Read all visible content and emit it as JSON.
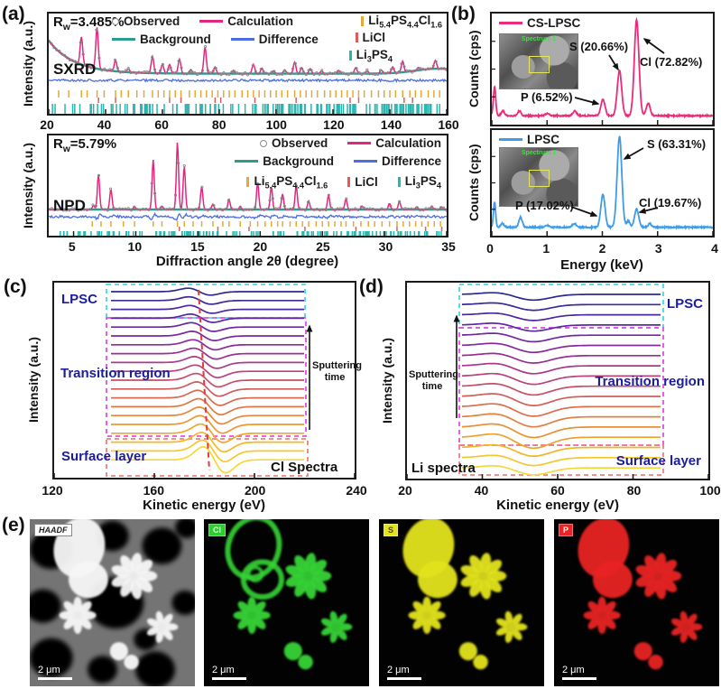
{
  "panel_labels": {
    "a": "(a)",
    "b": "(b)",
    "c": "(c)",
    "d": "(d)",
    "e": "(e)"
  },
  "chart_data": [
    {
      "id": "sxrd",
      "type": "line",
      "title": "SXRD",
      "rw": [
        {
          "t": "R"
        },
        {
          "s": "w"
        },
        {
          "t": "=3.485%"
        }
      ],
      "xlabel": "Diffraction angle 2θ (degree)",
      "ylabel": "Intensity (a.u.)",
      "xlim": [
        20,
        160
      ],
      "xticks": [
        20,
        40,
        60,
        80,
        100,
        120,
        140,
        160
      ],
      "series": [
        {
          "name": "Observed",
          "color": "#8a8a8a"
        },
        {
          "name": "Calculation",
          "color": "#e4267f"
        },
        {
          "name": "Background",
          "color": "#2a9d8f"
        },
        {
          "name": "Difference",
          "color": "#4a6de0"
        }
      ],
      "peaks": [
        [
          31.5,
          0.5
        ],
        [
          37,
          0.75
        ],
        [
          43.5,
          0.2
        ],
        [
          48,
          0.06
        ],
        [
          56.5,
          0.3
        ],
        [
          60,
          0.16
        ],
        [
          62.5,
          0.16
        ],
        [
          66,
          0.26
        ],
        [
          70,
          0.07
        ],
        [
          75,
          0.48
        ],
        [
          78.5,
          0.12
        ],
        [
          85,
          0.06
        ],
        [
          92,
          0.17
        ],
        [
          95,
          0.1
        ],
        [
          99,
          0.05
        ],
        [
          103,
          0.07
        ],
        [
          106.5,
          0.21
        ],
        [
          109,
          0.11
        ],
        [
          112,
          0.09
        ],
        [
          116,
          0.05
        ],
        [
          122,
          0.06
        ],
        [
          128,
          0.11
        ],
        [
          132,
          0.05
        ],
        [
          137,
          0.06
        ],
        [
          141,
          0.11
        ],
        [
          144.5,
          0.2
        ],
        [
          150,
          0.05
        ],
        [
          156,
          0.15
        ]
      ],
      "phases": [
        {
          "name_tokens": [
            {
              "t": "Li"
            },
            {
              "s": "5.4"
            },
            {
              "t": "PS"
            },
            {
              "s": "4.4"
            },
            {
              "t": "Cl"
            },
            {
              "s": "1.6"
            }
          ],
          "color": "#e2aa3c",
          "ticks": [
            23.5,
            27,
            31.5,
            33.5,
            37,
            39.5,
            43.5,
            45.5,
            48,
            51,
            53.5,
            56.5,
            58.5,
            60.5,
            62.5,
            64.5,
            66.5,
            69.5,
            71.5,
            73.5,
            75.5,
            77.5,
            79.5,
            81.5,
            83.5,
            85.5,
            88,
            90,
            92,
            94,
            96,
            98,
            100,
            102,
            104,
            106.5,
            108.5,
            110.5,
            112.5,
            114.5,
            117,
            119,
            121,
            123,
            125,
            127,
            129,
            131,
            133.5,
            136,
            138,
            140,
            142,
            144.5,
            147,
            149,
            151,
            153.5,
            155.5,
            157.5
          ]
        },
        {
          "name_tokens": [
            {
              "t": "LiCl"
            }
          ],
          "color": "#e05c5c",
          "ticks": [
            37.5,
            43.5,
            62.5,
            66.5,
            78.5,
            80.5,
            92.5,
            107,
            126,
            129,
            145,
            148
          ]
        },
        {
          "name_tokens": [
            {
              "t": "Li"
            },
            {
              "s": "3"
            },
            {
              "t": "PS"
            },
            {
              "s": "4"
            }
          ],
          "color": "#2cb5ae",
          "ticks_random": {
            "count": 160,
            "seed": 9
          }
        }
      ]
    },
    {
      "id": "npd",
      "type": "line",
      "title": "NPD",
      "rw": [
        {
          "t": "R"
        },
        {
          "s": "w"
        },
        {
          "t": "=5.79%"
        }
      ],
      "xlabel": "Diffraction angle 2θ (degree)",
      "ylabel": "Intensity (a.u.)",
      "xlim": [
        3,
        35
      ],
      "xticks": [
        5,
        10,
        15,
        20,
        25,
        30,
        35
      ],
      "series": [
        {
          "name": "Observed",
          "color": "#8a8a8a"
        },
        {
          "name": "Calculation",
          "color": "#e4267f"
        },
        {
          "name": "Background",
          "color": "#2a9d8f"
        },
        {
          "name": "Difference",
          "color": "#4a6de0"
        }
      ],
      "peaks": [
        [
          6.6,
          0.06
        ],
        [
          7.0,
          0.52
        ],
        [
          8.0,
          0.3
        ],
        [
          9.9,
          0.04
        ],
        [
          11.4,
          0.74
        ],
        [
          12.1,
          0.05
        ],
        [
          13.35,
          1.0
        ],
        [
          13.9,
          0.64
        ],
        [
          15.3,
          0.34
        ],
        [
          16.2,
          0.08
        ],
        [
          17.5,
          0.15
        ],
        [
          18.4,
          0.04
        ],
        [
          19.8,
          0.4
        ],
        [
          20.9,
          0.34
        ],
        [
          21.8,
          0.23
        ],
        [
          22.9,
          0.36
        ],
        [
          23.9,
          0.13
        ],
        [
          25.5,
          0.21
        ],
        [
          26.9,
          0.16
        ],
        [
          28.2,
          0.05
        ],
        [
          30.4,
          0.09
        ],
        [
          31.2,
          0.12
        ],
        [
          32.6,
          0.04
        ],
        [
          33.8,
          0.05
        ],
        [
          34.6,
          0.04
        ]
      ],
      "phases": [
        {
          "name_tokens": [
            {
              "t": "Li"
            },
            {
              "s": "5.4"
            },
            {
              "t": "PS"
            },
            {
              "s": "4.4"
            },
            {
              "t": "Cl"
            },
            {
              "s": "1.6"
            }
          ],
          "color": "#e2aa3c",
          "ticks": [
            6.5,
            7.2,
            8.0,
            9.0,
            9.9,
            11.4,
            12.1,
            13.35,
            13.9,
            14.6,
            15.3,
            16.2,
            17.0,
            17.5,
            18.4,
            19.2,
            19.8,
            20.4,
            20.9,
            21.4,
            21.8,
            22.4,
            22.9,
            23.4,
            23.9,
            24.5,
            25.0,
            25.5,
            26.0,
            26.5,
            26.9,
            27.5,
            28.1,
            28.7,
            29.2,
            29.8,
            30.4,
            31.0,
            31.5,
            32.0,
            32.5,
            33.0,
            33.5,
            34.0,
            34.5
          ]
        },
        {
          "name_tokens": [
            {
              "t": "LiCl"
            }
          ],
          "color": "#e05c5c",
          "ticks": [
            13.5,
            16.6,
            19.1,
            23.6,
            27.7,
            31.0,
            33.3,
            34.6
          ]
        },
        {
          "name_tokens": [
            {
              "t": "Li"
            },
            {
              "s": "3"
            },
            {
              "t": "PS"
            },
            {
              "s": "4"
            }
          ],
          "color": "#2cb5ae",
          "ticks_random": {
            "count": 150,
            "seed": 5
          }
        }
      ]
    },
    {
      "id": "eds-cs-lpsc",
      "type": "line",
      "legend": "CS-LPSC",
      "color": "#ee2a7b",
      "xlabel": "Energy (keV)",
      "ylabel": "Counts (cps)",
      "xlim": [
        0,
        4
      ],
      "xticks": [
        0,
        1,
        2,
        3,
        4
      ],
      "peaks": [
        [
          0.05,
          0.3,
          0.022
        ],
        [
          0.2,
          0.05,
          0.03
        ],
        [
          0.5,
          0.05,
          0.03
        ],
        [
          1.0,
          0.02,
          0.04
        ],
        [
          1.5,
          0.05,
          0.035
        ],
        [
          2.01,
          0.17,
          0.038
        ],
        [
          2.31,
          0.47,
          0.04
        ],
        [
          2.62,
          1.0,
          0.042
        ],
        [
          2.83,
          0.13,
          0.035
        ]
      ],
      "annotations": [
        {
          "text": "P (6.52%)",
          "x": 2.01
        },
        {
          "text": "S (20.66%)",
          "x": 2.31
        },
        {
          "text": "Cl (72.82%)",
          "x": 2.62
        }
      ],
      "inset_label": "Spectrum 1"
    },
    {
      "id": "eds-lpsc",
      "type": "line",
      "legend": "LPSC",
      "color": "#3f9ce8",
      "xlabel": "Energy (keV)",
      "ylabel": "Counts (cps)",
      "xlim": [
        0,
        4
      ],
      "xticks": [
        0,
        1,
        2,
        3,
        4
      ],
      "peaks": [
        [
          0.05,
          0.28,
          0.02
        ],
        [
          0.19,
          0.04,
          0.03
        ],
        [
          0.52,
          0.11,
          0.03
        ],
        [
          1.0,
          0.02,
          0.04
        ],
        [
          1.49,
          0.04,
          0.035
        ],
        [
          2.01,
          0.36,
          0.038
        ],
        [
          2.31,
          1.0,
          0.042
        ],
        [
          2.47,
          0.07,
          0.03
        ],
        [
          2.62,
          0.2,
          0.038
        ],
        [
          2.86,
          0.04,
          0.03
        ]
      ],
      "annotations": [
        {
          "text": "P (17.02%)",
          "x": 2.01
        },
        {
          "text": "S (63.31%)",
          "x": 2.31
        },
        {
          "text": "Cl (19.67%)",
          "x": 2.62
        }
      ],
      "inset_label": "Spectrum 1"
    },
    {
      "id": "cl-depth",
      "type": "line",
      "label": "Cl Spectra",
      "xlabel": "Kinetic energy (eV)",
      "ylabel": "Intensity (a.u.)",
      "xlim": [
        120,
        240
      ],
      "xticks": [
        120,
        160,
        200,
        240
      ],
      "sputter_label": "Sputtering time",
      "regions": [
        {
          "name": "LPSC",
          "count": 5,
          "box_color": "#45d6e8"
        },
        {
          "name": "Transition region",
          "count": 13,
          "box_color": "#e34fe3"
        },
        {
          "name": "Surface layer",
          "count": 2,
          "box_color": "#f08080"
        }
      ],
      "palette": [
        "#2b2b8f",
        "#4b27a0",
        "#6e28a3",
        "#93299a",
        "#b43d85",
        "#cc555f",
        "#df7347",
        "#ec9430",
        "#f3b722",
        "#f6d837"
      ],
      "dip_ev": [
        179,
        184
      ]
    },
    {
      "id": "li-depth",
      "type": "line",
      "label": "Li spectra",
      "xlabel": "Kinetic energy (eV)",
      "ylabel": "Intensity (a.u.)",
      "xlim": [
        20,
        100
      ],
      "xticks": [
        20,
        40,
        60,
        80,
        100
      ],
      "sputter_label": "Sputtering time",
      "regions": [
        {
          "name": "LPSC",
          "count": 3,
          "box_color": "#45d6e8"
        },
        {
          "name": "Transition region",
          "count": 12,
          "box_color": "#e34fe3"
        },
        {
          "name": "Surface layer",
          "count": 3,
          "box_color": "#f08080"
        }
      ],
      "palette": [
        "#2b2b8f",
        "#4b27a0",
        "#6e28a3",
        "#93299a",
        "#b43d85",
        "#cc555f",
        "#df7347",
        "#ec9430",
        "#f3b722",
        "#f6d837"
      ],
      "dip_ev": [
        53,
        54
      ]
    }
  ],
  "panel_e": {
    "images": [
      {
        "badge": "HAADF",
        "badge_bg": "#ffffff",
        "badge_fg": "#222222",
        "kind": "haadf",
        "color": "#f5f5f5",
        "ring": false,
        "scalebar": "2 μm"
      },
      {
        "badge": "Cl",
        "badge_bg": "#2ecc2e",
        "badge_fg": "#eaffea",
        "kind": "map",
        "color": "#35d435",
        "ring": true,
        "scalebar": "2 μm"
      },
      {
        "badge": "S",
        "badge_bg": "#e3e31c",
        "badge_fg": "#4a4a00",
        "kind": "map",
        "color": "#e3e31c",
        "ring": false,
        "scalebar": "2 μm"
      },
      {
        "badge": "P",
        "badge_bg": "#e82525",
        "badge_fg": "#ffecec",
        "kind": "map",
        "color": "#e82525",
        "ring": false,
        "scalebar": "2 μm"
      }
    ]
  }
}
